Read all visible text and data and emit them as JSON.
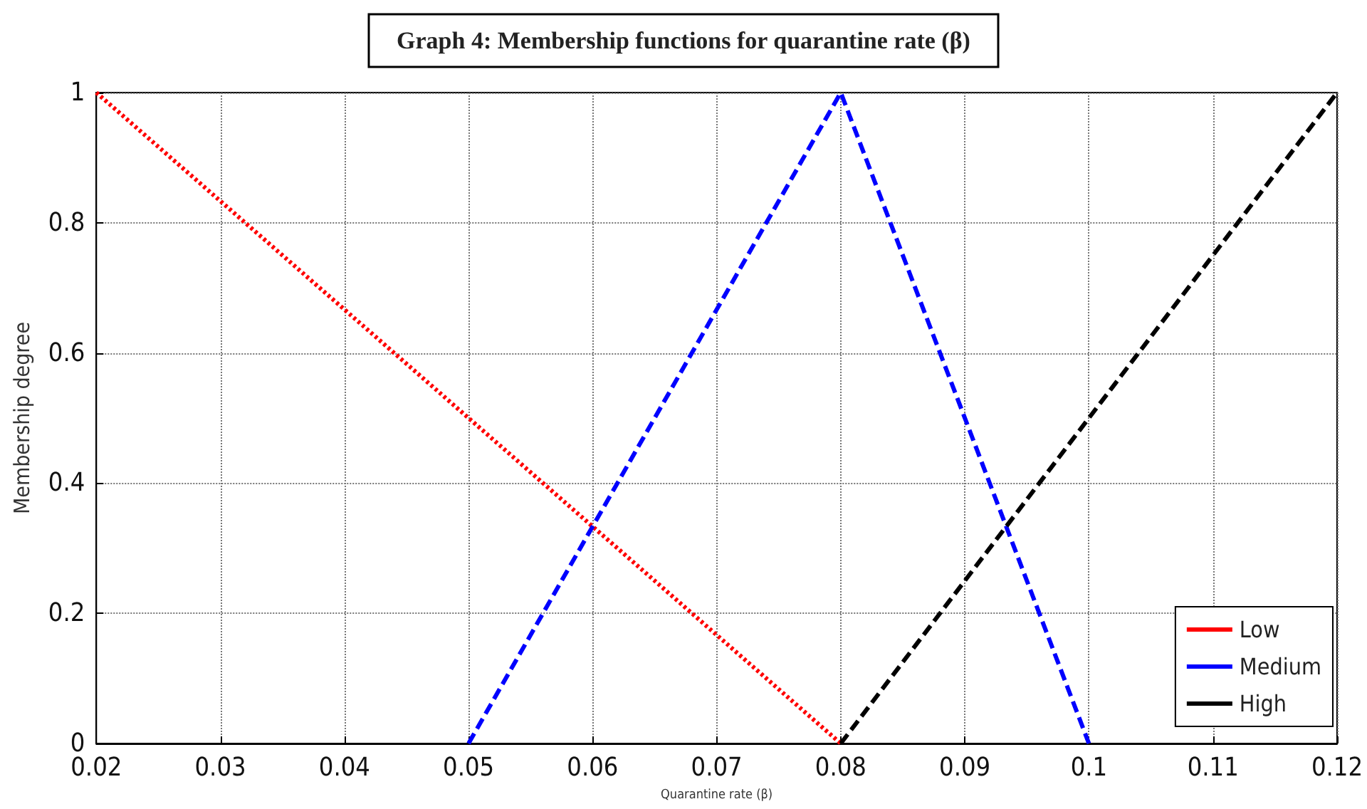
{
  "chart_data": {
    "type": "line",
    "title": "Graph 4: Membership functions for quarantine rate (β)",
    "xlabel": "Quarantine rate (β)",
    "ylabel": "Membership degree",
    "series": [
      {
        "name": "Low",
        "color": "#ff0000",
        "line_style": "dotted",
        "x": [
          0.02,
          0.08
        ],
        "values": [
          1,
          0
        ]
      },
      {
        "name": "Medium",
        "color": "#0000ff",
        "line_style": "dashed",
        "x": [
          0.05,
          0.08,
          0.1
        ],
        "values": [
          0,
          1,
          0
        ]
      },
      {
        "name": "High",
        "color": "#000000",
        "line_style": "dashed",
        "x": [
          0.08,
          0.12
        ],
        "values": [
          0,
          1
        ]
      }
    ],
    "xlim": [
      0.02,
      0.12
    ],
    "xticks": [
      0.02,
      0.03,
      0.04,
      0.05,
      0.06,
      0.07,
      0.08,
      0.09,
      0.1,
      0.11,
      0.12
    ],
    "ylim": [
      0,
      1
    ],
    "yticks": [
      0,
      0.2,
      0.4,
      0.6,
      0.8,
      1
    ],
    "grid": true,
    "legend": "bottom right",
    "marker": "none"
  }
}
